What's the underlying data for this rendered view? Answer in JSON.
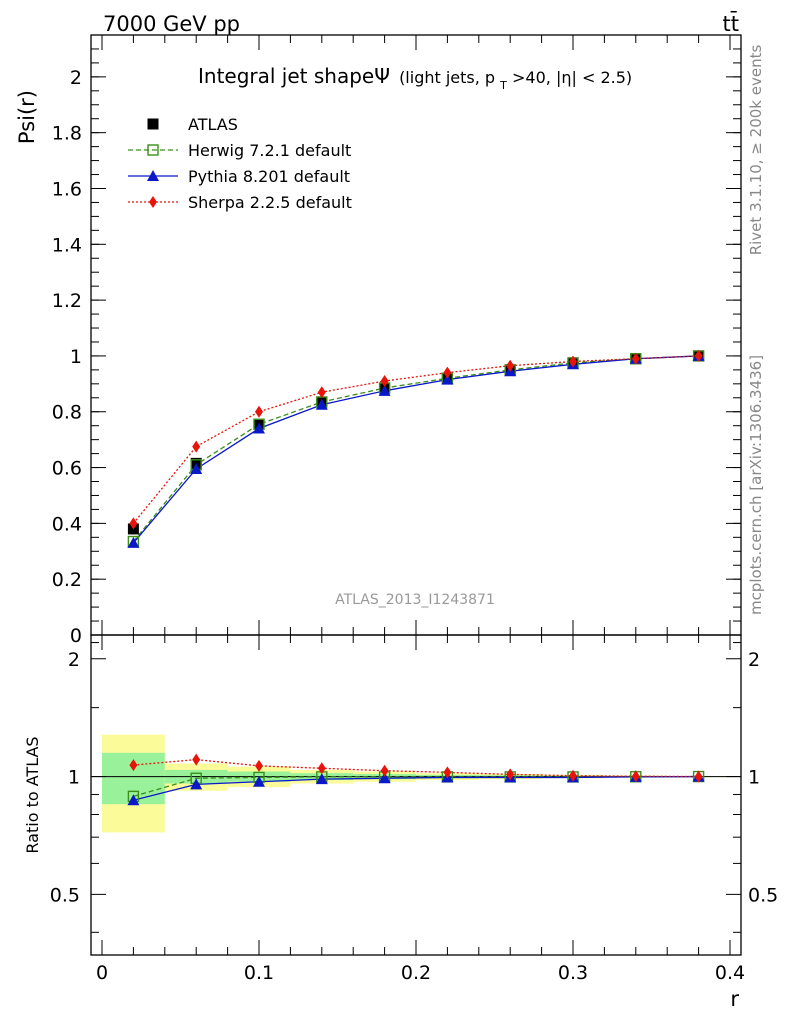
{
  "header": {
    "left": "7000 GeV pp",
    "right": "tt̄"
  },
  "side_labels": {
    "rivet": "Rivet 3.1.10, ≥ 200k events",
    "mcplots": "mcplots.cern.ch [arXiv:1306.3436]"
  },
  "watermark": "ATLAS_2013_I1243871",
  "chart_data": {
    "type": "line",
    "title_main": "Integral jet shapeΨ",
    "title_sub_a": "(light jets, p",
    "title_sub_sub": "T",
    "title_sub_b": ">40, |η| < 2.5)",
    "xlabel": "r",
    "ylabel": "Psi(r)",
    "ratio_ylabel": "Ratio to ATLAS",
    "xlim": [
      0,
      0.4
    ],
    "ylim": [
      0,
      2.15
    ],
    "ratio_ylim": [
      0.35,
      2.3
    ],
    "x_ticks": [
      "0",
      "0.1",
      "0.2",
      "0.3",
      "0.4"
    ],
    "y_ticks": [
      "0",
      "0.2",
      "0.4",
      "0.6",
      "0.8",
      "1",
      "1.2",
      "1.4",
      "1.6",
      "1.8",
      "2"
    ],
    "ratio_ticks": [
      "0.5",
      "1",
      "2"
    ],
    "ratio_ticks_right": [
      "0.5",
      "1",
      "2"
    ],
    "x": [
      0.02,
      0.06,
      0.1,
      0.14,
      0.18,
      0.22,
      0.26,
      0.3,
      0.34,
      0.38
    ],
    "bin_edges": [
      0.0,
      0.04,
      0.08,
      0.12,
      0.16,
      0.2,
      0.24,
      0.28,
      0.32,
      0.36,
      0.4
    ],
    "data_band_inner": [
      0.15,
      0.04,
      0.03,
      0.02,
      0.015,
      0.01,
      0.008,
      0.006,
      0.004,
      0.002
    ],
    "data_band_outer": [
      0.28,
      0.08,
      0.06,
      0.04,
      0.03,
      0.02,
      0.015,
      0.01,
      0.006,
      0.003
    ],
    "series": [
      {
        "name": "ATLAS",
        "style": "data",
        "color": "#000000",
        "values": [
          0.38,
          0.615,
          0.755,
          0.835,
          0.885,
          0.92,
          0.95,
          0.975,
          0.99,
          1.0
        ],
        "ratio": [
          1,
          1,
          1,
          1,
          1,
          1,
          1,
          1,
          1,
          1
        ]
      },
      {
        "name": "Herwig 7.2.1 default",
        "style": "herwig",
        "color": "#3a8f1b",
        "values": [
          0.335,
          0.61,
          0.755,
          0.835,
          0.885,
          0.92,
          0.95,
          0.975,
          0.99,
          1.0
        ],
        "ratio": [
          0.89,
          0.99,
          0.995,
          0.998,
          0.998,
          0.998,
          0.998,
          0.998,
          0.999,
          1.0
        ]
      },
      {
        "name": "Pythia 8.201 default",
        "style": "pythia",
        "color": "#0a18c8",
        "values": [
          0.33,
          0.595,
          0.74,
          0.825,
          0.875,
          0.915,
          0.945,
          0.97,
          0.99,
          1.0
        ],
        "ratio": [
          0.87,
          0.955,
          0.97,
          0.985,
          0.99,
          0.995,
          0.995,
          0.995,
          0.998,
          1.0
        ]
      },
      {
        "name": "Sherpa 2.2.5 default",
        "style": "sherpa",
        "color": "#e8140a",
        "values": [
          0.4,
          0.675,
          0.8,
          0.87,
          0.91,
          0.94,
          0.965,
          0.98,
          0.99,
          1.0
        ],
        "ratio": [
          1.07,
          1.105,
          1.065,
          1.05,
          1.035,
          1.025,
          1.013,
          1.005,
          1.002,
          1.0
        ]
      }
    ],
    "colors": {
      "band_inner": "#99f299",
      "band_outer": "#fbfb9a",
      "watermark": "#999999"
    }
  }
}
